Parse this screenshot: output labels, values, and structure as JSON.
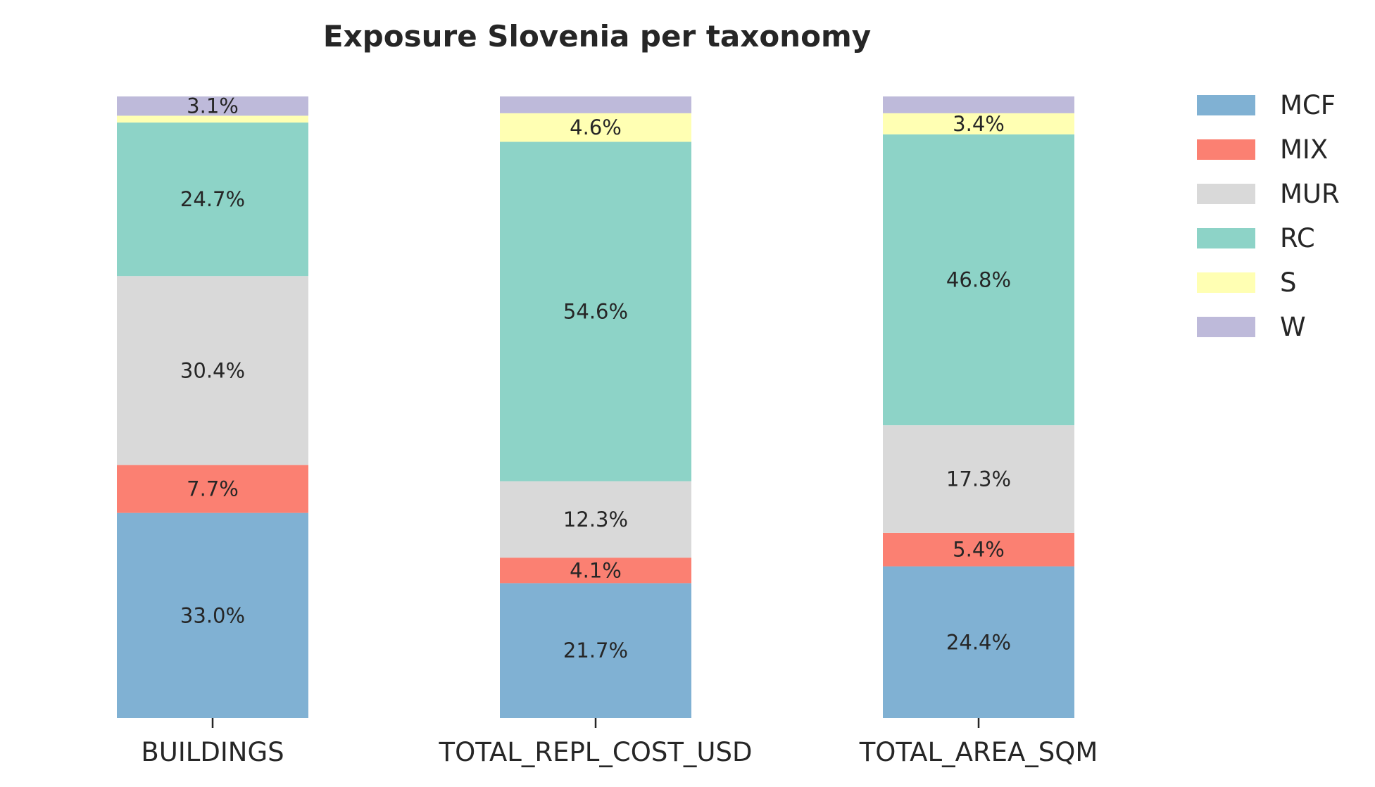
{
  "chart_data": {
    "type": "bar",
    "stacked": true,
    "normalized": true,
    "title": "Exposure Slovenia per taxonomy",
    "xlabel": "",
    "ylabel": "",
    "ylim": [
      0,
      100
    ],
    "grid": false,
    "legend_position": "top-right (outside plot)",
    "categories": [
      "BUILDINGS",
      "TOTAL_REPL_COST_USD",
      "TOTAL_AREA_SQM"
    ],
    "series": [
      {
        "name": "MCF",
        "color": "#80b1d3",
        "values": [
          33.0,
          21.7,
          24.4
        ],
        "labels": [
          "33.0%",
          "21.7%",
          "24.4%"
        ]
      },
      {
        "name": "MIX",
        "color": "#fb8072",
        "values": [
          7.7,
          4.1,
          5.4
        ],
        "labels": [
          "7.7%",
          "4.1%",
          "5.4%"
        ]
      },
      {
        "name": "MUR",
        "color": "#d9d9d9",
        "values": [
          30.4,
          12.3,
          17.3
        ],
        "labels": [
          "30.4%",
          "12.3%",
          "17.3%"
        ]
      },
      {
        "name": "RC",
        "color": "#8dd3c7",
        "values": [
          24.7,
          54.6,
          46.8
        ],
        "labels": [
          "24.7%",
          "54.6%",
          "46.8%"
        ]
      },
      {
        "name": "S",
        "color": "#ffffb3",
        "values": [
          1.1,
          4.6,
          3.4
        ],
        "labels": [
          "",
          "4.6%",
          "3.4%"
        ]
      },
      {
        "name": "W",
        "color": "#bebada",
        "values": [
          3.1,
          2.7,
          2.7
        ],
        "labels": [
          "3.1%",
          "",
          ""
        ]
      }
    ]
  }
}
